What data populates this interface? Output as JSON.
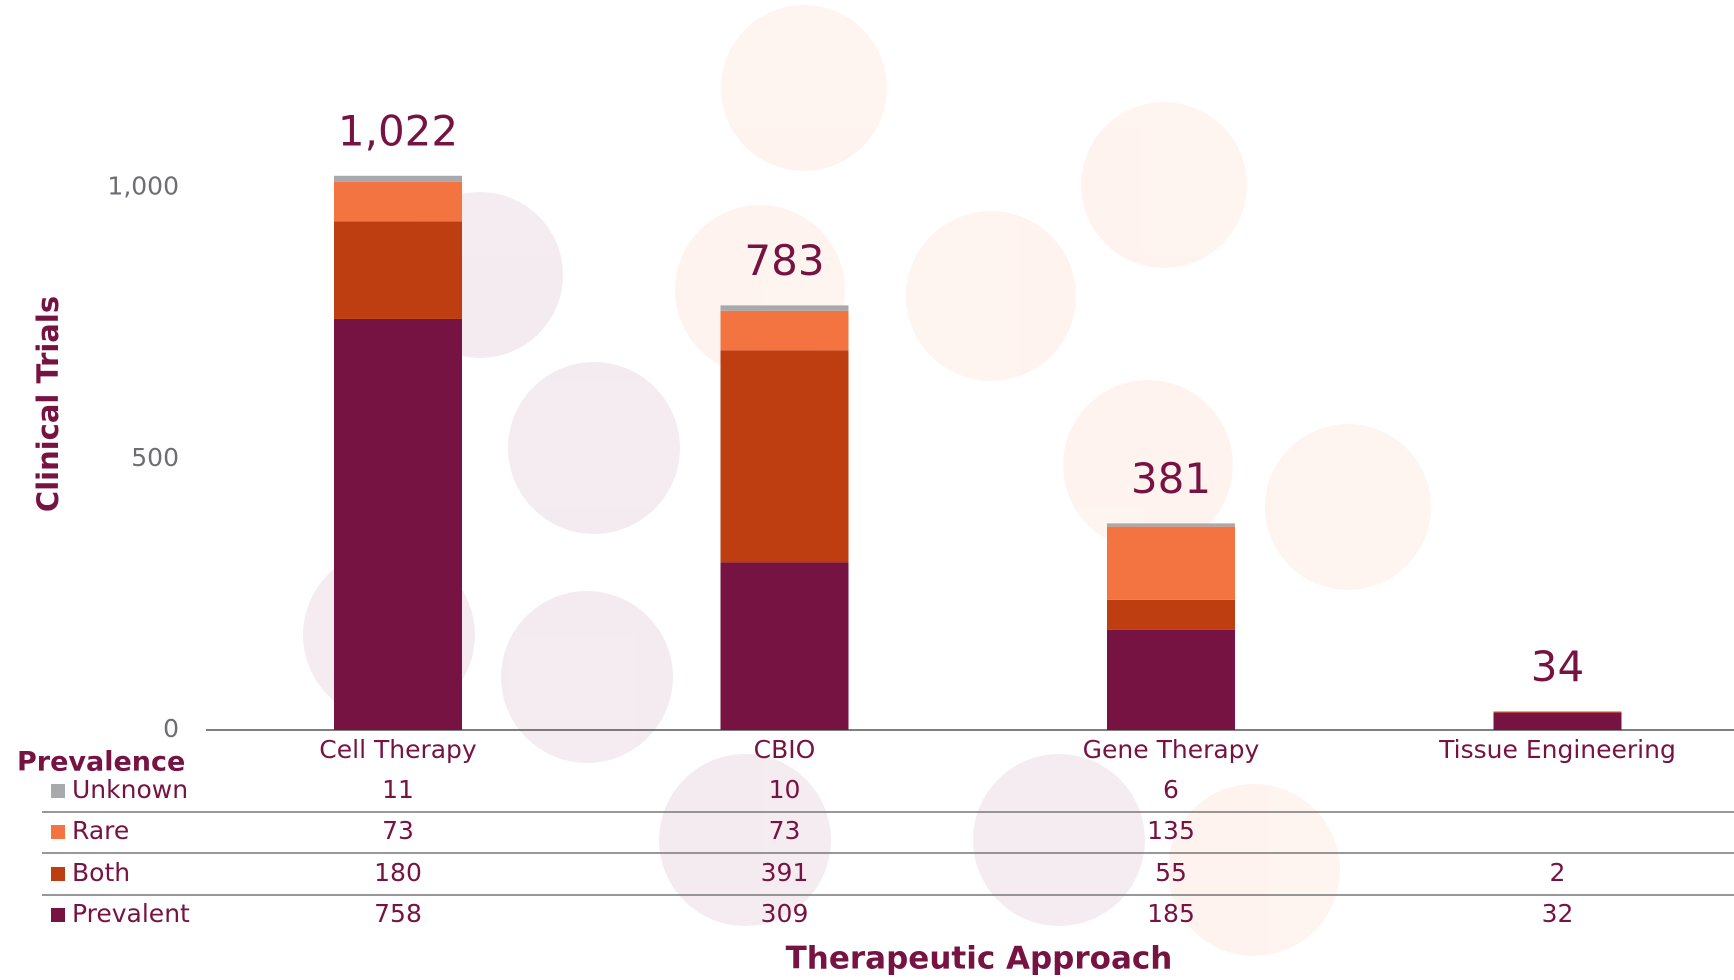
{
  "chart_data": {
    "type": "stacked_bar",
    "y_label": "Clinical Trials",
    "x_label": "Therapeutic Approach",
    "legend_title": "Prevalence",
    "categories": [
      "Cell Therapy",
      "CBIO",
      "Gene Therapy",
      "Tissue Engineering"
    ],
    "series": [
      {
        "name": "Unknown",
        "color": "#a7a9ac",
        "values": [
          11,
          10,
          6,
          null
        ]
      },
      {
        "name": "Rare",
        "color": "#f37441",
        "values": [
          73,
          73,
          135,
          null
        ]
      },
      {
        "name": "Both",
        "color": "#bf3e11",
        "values": [
          180,
          391,
          55,
          2
        ]
      },
      {
        "name": "Prevalent",
        "color": "#771342",
        "values": [
          758,
          309,
          185,
          32
        ]
      }
    ],
    "totals": {
      "values": [
        1022,
        783,
        381,
        34
      ],
      "value_labels": [
        "1,022",
        "783",
        "381",
        "34"
      ]
    },
    "ylim": [
      0,
      1300
    ],
    "yticks": [
      0,
      500,
      {
        "value": 1000,
        "label": "1,000"
      }
    ],
    "grid": false
  }
}
